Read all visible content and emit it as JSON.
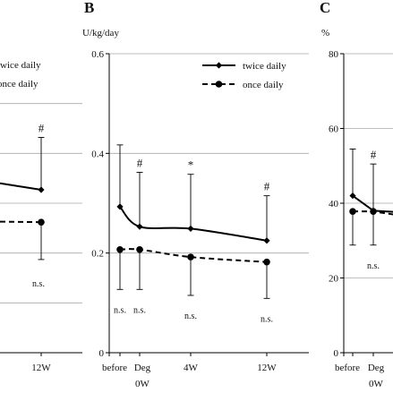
{
  "panels": {
    "A": {
      "legend": [
        "twice daily",
        "once daily"
      ],
      "ns": "n.s.",
      "last_tick": "12W",
      "marker": "#"
    },
    "B": {
      "letter": "B",
      "unit": "U/kg/day"
    },
    "C": {
      "letter": "C",
      "unit": "%"
    }
  },
  "chart_data": [
    {
      "panel": "A",
      "type": "line",
      "x": [
        "12W"
      ],
      "series": [
        {
          "name": "twice daily",
          "values": [
            0.327
          ],
          "error_up": [
            0.105
          ]
        },
        {
          "name": "once daily",
          "values": [
            0.262
          ],
          "error_down": [
            0.075
          ]
        }
      ],
      "annotations": [
        {
          "x": "12W",
          "text": "#",
          "position": "above"
        },
        {
          "x": "12W",
          "text": "n.s.",
          "position": "below"
        }
      ],
      "ylim": [
        0,
        0.6
      ],
      "grid": true
    },
    {
      "panel": "B",
      "type": "line",
      "title": "",
      "ylabel": "U/kg/day",
      "x": [
        "before",
        "Deg 0W",
        "4W",
        "12W"
      ],
      "xtick_labels": [
        "before",
        "Deg",
        "0W",
        "4W",
        "12W"
      ],
      "ylim": [
        0,
        0.6
      ],
      "yticks": [
        "0",
        "0.2",
        "0.4",
        "0.6"
      ],
      "grid": true,
      "legend_position": "top-right",
      "series": [
        {
          "name": "twice daily",
          "style": "solid",
          "marker": "diamond",
          "values": [
            0.293,
            0.253,
            0.249,
            0.225
          ],
          "error_up": [
            0.124,
            0.109,
            0.109,
            0.09
          ]
        },
        {
          "name": "once daily",
          "style": "dashed",
          "marker": "circle",
          "values": [
            0.207,
            0.207,
            0.192,
            0.182
          ],
          "error_down": [
            0.08,
            0.08,
            0.077,
            0.073
          ]
        }
      ],
      "annotations": [
        {
          "x": "Deg 0W",
          "text": "#",
          "position": "above"
        },
        {
          "x": "4W",
          "text": "*",
          "position": "above"
        },
        {
          "x": "12W",
          "text": "#",
          "position": "above"
        },
        {
          "x": "before",
          "text": "n.s.",
          "position": "below"
        },
        {
          "x": "Deg 0W",
          "text": "n.s.",
          "position": "below"
        },
        {
          "x": "4W",
          "text": "n.s.",
          "position": "below"
        },
        {
          "x": "12W",
          "text": "n.s.",
          "position": "below"
        }
      ]
    },
    {
      "panel": "C",
      "type": "line",
      "ylabel": "%",
      "x": [
        "before",
        "Deg 0W"
      ],
      "xtick_labels": [
        "before",
        "Deg",
        "0W"
      ],
      "ylim": [
        0,
        80
      ],
      "yticks": [
        "0",
        "20",
        "40",
        "60",
        "80"
      ],
      "grid": true,
      "series": [
        {
          "name": "twice daily",
          "style": "solid",
          "marker": "diamond",
          "values": [
            42,
            38
          ],
          "error_up": [
            12.5,
            12.5
          ]
        },
        {
          "name": "once daily",
          "style": "dashed",
          "marker": "circle",
          "values": [
            37.8,
            37.8
          ],
          "error_down": [
            9,
            9
          ]
        }
      ],
      "annotations": [
        {
          "x": "Deg 0W",
          "text": "#",
          "position": "above"
        },
        {
          "x": "Deg 0W",
          "text": "n.s.",
          "position": "below"
        }
      ]
    }
  ]
}
